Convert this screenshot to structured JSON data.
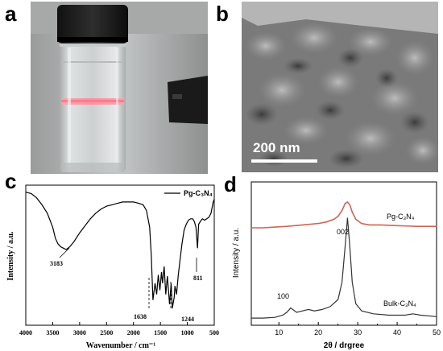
{
  "panels": {
    "a": {
      "label": "a"
    },
    "b": {
      "label": "b",
      "scale_bar": "200 nm"
    },
    "c": {
      "label": "c"
    },
    "d": {
      "label": "d"
    }
  },
  "chart_data": [
    {
      "type": "line",
      "panel": "c",
      "xlabel": "Wavenumber / cm⁻¹",
      "ylabel": "Intensity / a.u.",
      "xlim": [
        4000,
        500
      ],
      "x_reversed": true,
      "xticks": [
        "4000",
        "3500",
        "3000",
        "2500",
        "2000",
        "1500",
        "1000",
        "500"
      ],
      "legend": "Pg-C₃N₄",
      "legend_position": "top-right",
      "annotations": [
        "3183",
        "1638",
        "1244",
        "811"
      ],
      "series": [
        {
          "name": "Pg-C₃N₄",
          "x": [
            4000,
            3900,
            3800,
            3700,
            3600,
            3500,
            3450,
            3400,
            3350,
            3300,
            3250,
            3183,
            3100,
            3000,
            2900,
            2800,
            2700,
            2600,
            2500,
            2400,
            2300,
            2200,
            2100,
            2000,
            1900,
            1820,
            1760,
            1700,
            1670,
            1638,
            1600,
            1570,
            1540,
            1510,
            1480,
            1460,
            1430,
            1400,
            1370,
            1330,
            1300,
            1280,
            1244,
            1230,
            1200,
            1170,
            1140,
            1100,
            1060,
            1020,
            980,
            940,
            900,
            870,
            840,
            811,
            790,
            760,
            720,
            680,
            640,
            600,
            560,
            520,
            500
          ],
          "y": [
            0.95,
            0.94,
            0.91,
            0.86,
            0.8,
            0.7,
            0.62,
            0.58,
            0.56,
            0.55,
            0.54,
            0.56,
            0.6,
            0.66,
            0.71,
            0.76,
            0.8,
            0.83,
            0.85,
            0.86,
            0.87,
            0.88,
            0.88,
            0.88,
            0.87,
            0.86,
            0.82,
            0.7,
            0.5,
            0.18,
            0.3,
            0.22,
            0.36,
            0.25,
            0.38,
            0.3,
            0.42,
            0.22,
            0.35,
            0.15,
            0.3,
            0.12,
            0.2,
            0.28,
            0.22,
            0.35,
            0.45,
            0.58,
            0.68,
            0.72,
            0.75,
            0.76,
            0.76,
            0.74,
            0.7,
            0.55,
            0.72,
            0.74,
            0.76,
            0.75,
            0.76,
            0.77,
            0.8,
            0.88,
            0.9
          ]
        }
      ]
    },
    {
      "type": "line",
      "panel": "d",
      "xlabel": "2θ / drgree",
      "ylabel": "Intensity / a.u.",
      "xlim": [
        3,
        50
      ],
      "xticks": [
        "10",
        "20",
        "30",
        "40",
        "50"
      ],
      "peak_labels": [
        "100",
        "002"
      ],
      "series": [
        {
          "name": "Pg-C₃N₄",
          "color": "#cc6655",
          "x": [
            3,
            6,
            9,
            12,
            14,
            16,
            18,
            20,
            22,
            24,
            25,
            26,
            26.8,
            27.4,
            28,
            28.6,
            29.5,
            31,
            33,
            36,
            40,
            45,
            50
          ],
          "y": [
            0.68,
            0.68,
            0.685,
            0.69,
            0.695,
            0.7,
            0.705,
            0.71,
            0.72,
            0.74,
            0.76,
            0.8,
            0.85,
            0.86,
            0.84,
            0.79,
            0.74,
            0.71,
            0.7,
            0.7,
            0.695,
            0.69,
            0.69
          ]
        },
        {
          "name": "Bulk-C₃N₄",
          "color": "#333333",
          "x": [
            3,
            6,
            9,
            11,
            12,
            13,
            13.5,
            14.5,
            16,
            17.5,
            19,
            21,
            23,
            25,
            26,
            26.8,
            27.4,
            28,
            28.6,
            29.5,
            31,
            34,
            38,
            42,
            44,
            46,
            50
          ],
          "y": [
            0.05,
            0.05,
            0.055,
            0.07,
            0.09,
            0.12,
            0.11,
            0.09,
            0.1,
            0.11,
            0.1,
            0.11,
            0.13,
            0.18,
            0.3,
            0.55,
            0.75,
            0.55,
            0.3,
            0.15,
            0.1,
            0.08,
            0.07,
            0.07,
            0.08,
            0.07,
            0.06
          ]
        }
      ]
    }
  ]
}
